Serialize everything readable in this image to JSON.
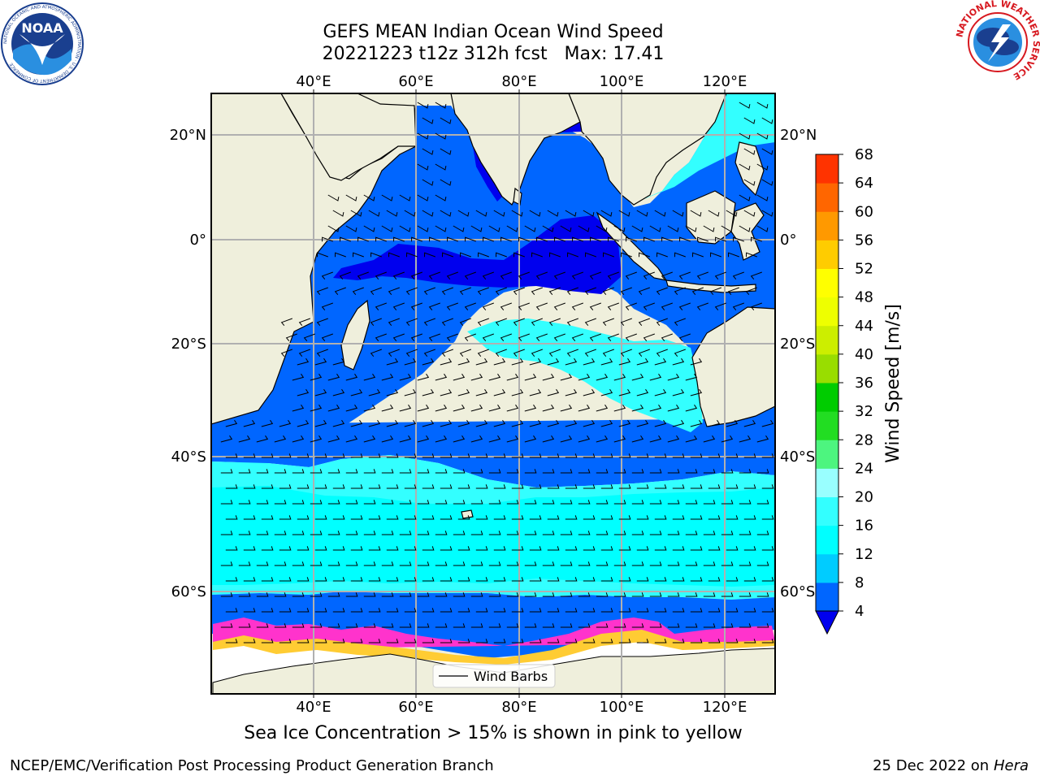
{
  "title": {
    "line1": "GEFS MEAN Indian Ocean Wind Speed",
    "line2": "20221223 t12z 312h fcst   Max: 17.41"
  },
  "logos": {
    "left": {
      "text": "NOAA",
      "ring_text": "NATIONAL OCEANIC AND ATMOSPHERIC ADMINISTRATION · U.S. DEPARTMENT OF COMMERCE",
      "color": "#1a3f8f"
    },
    "right": {
      "ring_text": "NATIONAL WEATHER SERVICE",
      "color": "#d71920"
    }
  },
  "map": {
    "lon_range": [
      20,
      129
    ],
    "lat_range": [
      -75,
      27
    ],
    "lon_ticks": [
      "40°E",
      "60°E",
      "80°E",
      "100°E",
      "120°E"
    ],
    "lon_tick_values": [
      40,
      60,
      80,
      100,
      120
    ],
    "lat_ticks": [
      "20°N",
      "0°",
      "20°S",
      "40°S",
      "60°S"
    ],
    "lat_tick_values": [
      20,
      0,
      -20,
      -40,
      -60
    ],
    "grid": true,
    "land_color": "#efefdc",
    "legend": {
      "label": "Wind Barbs",
      "placement": "lower-center"
    }
  },
  "colorbar": {
    "title": "Wind Speed [m/s]",
    "ticks": [
      "4",
      "8",
      "12",
      "16",
      "20",
      "24",
      "28",
      "32",
      "36",
      "40",
      "44",
      "48",
      "52",
      "56",
      "60",
      "64",
      "68"
    ],
    "colors": [
      "#0066ff",
      "#00ccff",
      "#00ffff",
      "#33ffff",
      "#99ffff",
      "#4df57f",
      "#22dd22",
      "#00cc00",
      "#99dd00",
      "#ccee00",
      "#eeff00",
      "#ffff00",
      "#ffcc00",
      "#ff9900",
      "#ff6600",
      "#ff3300",
      "#ff0000"
    ],
    "under_color": "#0000ee"
  },
  "footer": {
    "note": "Sea Ice Concentration > 15% is shown in pink to yellow",
    "credit": "NCEP/EMC/Verification Post Processing Product Generation Branch",
    "date": "25 Dec 2022 on",
    "host": "Hera"
  }
}
